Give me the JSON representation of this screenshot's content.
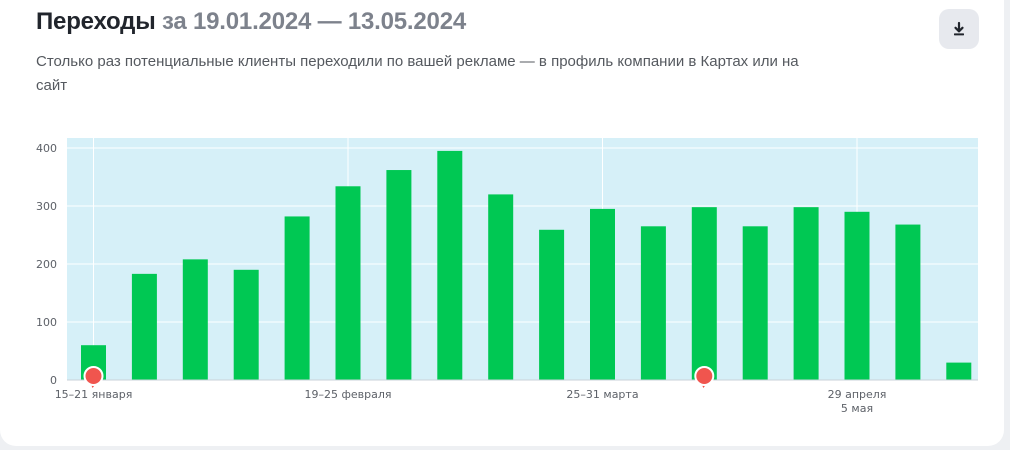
{
  "header": {
    "title": "Переходы",
    "date_range": "за 19.01.2024 — 13.05.2024",
    "subtitle": "Столько раз потенциальные клиенты переходили по вашей рекламе — в профиль компании в Картах или на сайт",
    "download_icon": "download-icon"
  },
  "colors": {
    "bar": "#00c853",
    "plot_background": "#d6f0f8",
    "marker": "#f0554e"
  },
  "chart_data": {
    "type": "bar",
    "title": "",
    "xlabel": "",
    "ylabel": "",
    "ylim": [
      0,
      410
    ],
    "yticks": [
      0,
      100,
      200,
      300,
      400
    ],
    "grid": true,
    "values": [
      60,
      183,
      208,
      190,
      282,
      334,
      362,
      395,
      320,
      259,
      295,
      265,
      298,
      265,
      298,
      290,
      268,
      30
    ],
    "x_labels": [
      {
        "bar_index": 0,
        "lines": [
          "15–21 января"
        ]
      },
      {
        "bar_index": 5,
        "lines": [
          "19–25 февраля"
        ]
      },
      {
        "bar_index": 10,
        "lines": [
          "25–31 марта"
        ]
      },
      {
        "bar_index": 15,
        "lines": [
          "29 апреля",
          "5 мая"
        ]
      }
    ],
    "markers": [
      {
        "bar_index": 0
      },
      {
        "bar_index": 12
      }
    ]
  }
}
